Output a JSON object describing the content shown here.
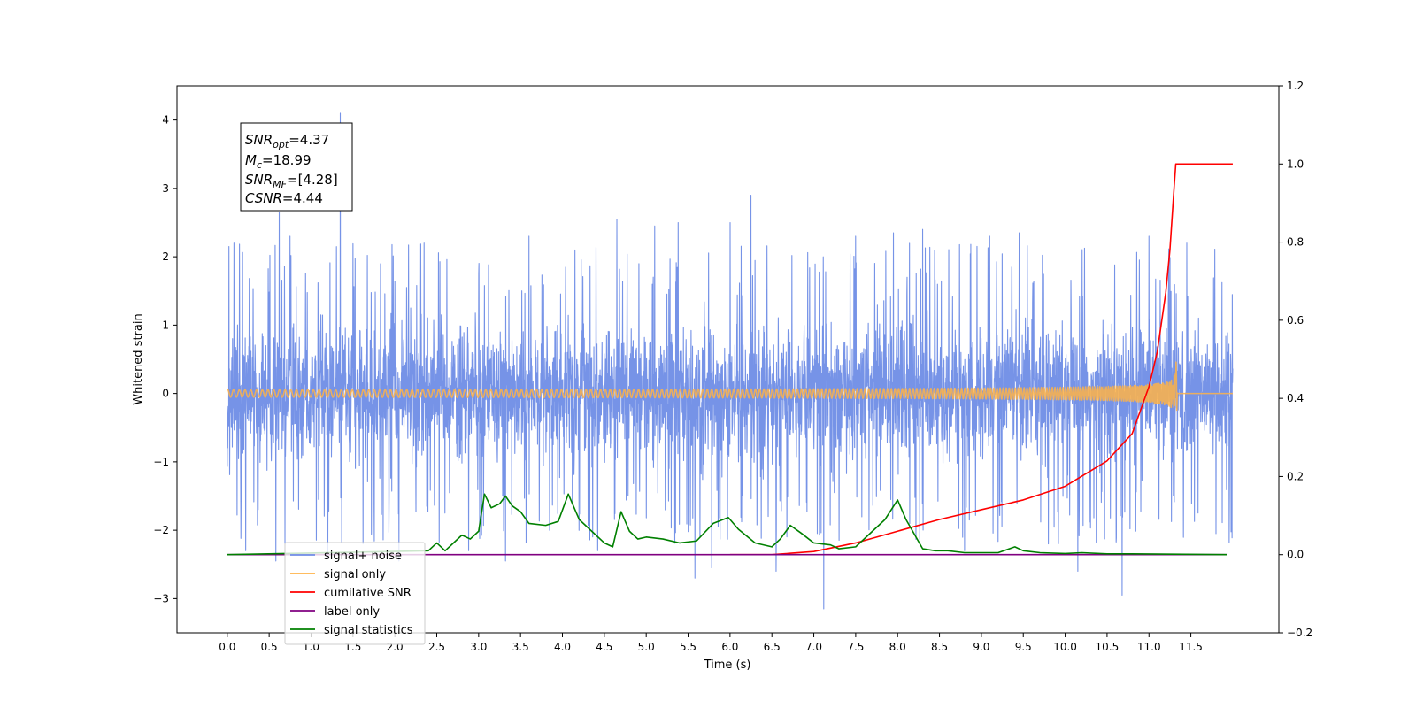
{
  "chart_data": {
    "type": "line",
    "xlabel": "Time (s)",
    "ylabel": "Whitened strain",
    "xlim": [
      -0.6,
      12.55
    ],
    "ylim": [
      -3.5,
      4.5
    ],
    "y2lim": [
      -0.2,
      1.2
    ],
    "grid": false,
    "legend_placement": "lower-left",
    "x_ticks": [
      "0.0",
      "0.5",
      "1.0",
      "1.5",
      "2.0",
      "2.5",
      "3.0",
      "3.5",
      "4.0",
      "4.5",
      "5.0",
      "5.5",
      "6.0",
      "6.5",
      "7.0",
      "7.5",
      "8.0",
      "8.5",
      "9.0",
      "9.5",
      "10.0",
      "10.5",
      "11.0",
      "11.5"
    ],
    "y_ticks": [
      "4",
      "3",
      "2",
      "1",
      "0",
      "−1",
      "−2",
      "−3"
    ],
    "y2_ticks": [
      "1.2",
      "1.0",
      "0.8",
      "0.6",
      "0.4",
      "0.2",
      "0.0",
      "−0.2"
    ],
    "annotation": {
      "snr_opt_base": "SNR",
      "snr_opt_sub": "opt",
      "snr_opt_value": "=4.37",
      "mc_base": "M",
      "mc_sub": "c",
      "mc_value": "=18.99",
      "snr_mf_base": "SNR",
      "snr_mf_sub": "MF",
      "snr_mf_value": "=[4.28]",
      "csnr_base": "CSNR",
      "csnr_value": "=4.44"
    },
    "series": [
      {
        "name": "signal+ noise",
        "color": "#6f8de6",
        "axis": "left",
        "kind": "noise",
        "x_range": [
          0.0,
          12.0
        ],
        "band": [
          -1.6,
          1.4
        ],
        "spikes": [
          [
            0.02,
            2.15
          ],
          [
            0.08,
            2.2
          ],
          [
            0.22,
            -2.3
          ],
          [
            0.58,
            -2.45
          ],
          [
            0.62,
            2.65
          ],
          [
            0.75,
            2.3
          ],
          [
            1.35,
            4.1
          ],
          [
            1.2,
            -2.4
          ],
          [
            1.62,
            -2.2
          ],
          [
            2.05,
            -2.45
          ],
          [
            2.35,
            2.2
          ],
          [
            2.88,
            -2.3
          ],
          [
            3.32,
            -2.45
          ],
          [
            3.6,
            2.3
          ],
          [
            4.15,
            2.1
          ],
          [
            4.42,
            -2.3
          ],
          [
            4.65,
            2.55
          ],
          [
            5.1,
            2.45
          ],
          [
            5.38,
            2.5
          ],
          [
            5.58,
            -2.7
          ],
          [
            5.78,
            -2.55
          ],
          [
            6.0,
            2.5
          ],
          [
            6.25,
            2.9
          ],
          [
            6.55,
            -2.6
          ],
          [
            7.12,
            -3.15
          ],
          [
            7.5,
            2.3
          ],
          [
            7.95,
            2.35
          ],
          [
            8.3,
            2.4
          ],
          [
            8.8,
            -2.3
          ],
          [
            9.1,
            2.3
          ],
          [
            9.45,
            2.35
          ],
          [
            9.8,
            -2.2
          ],
          [
            10.15,
            -2.6
          ],
          [
            10.68,
            -2.95
          ],
          [
            11.0,
            2.3
          ],
          [
            11.45,
            2.2
          ],
          [
            11.8,
            -2.05
          ]
        ]
      },
      {
        "name": "signal only",
        "color": "#ffb347",
        "axis": "left",
        "kind": "chirp",
        "x_range": [
          0.0,
          12.0
        ],
        "merger_time": 11.32,
        "peak_amplitude": 0.72
      },
      {
        "name": "cumilative SNR",
        "color": "#ff0000",
        "axis": "right",
        "x": [
          6.0,
          6.5,
          7.0,
          7.5,
          8.0,
          8.5,
          9.0,
          9.5,
          10.0,
          10.5,
          10.8,
          11.0,
          11.1,
          11.2,
          11.25,
          11.3,
          11.32,
          11.4,
          12.0
        ],
        "y": [
          0.0,
          0.0,
          0.008,
          0.03,
          0.06,
          0.09,
          0.115,
          0.14,
          0.175,
          0.24,
          0.31,
          0.43,
          0.52,
          0.67,
          0.78,
          0.94,
          1.0,
          1.0,
          1.0
        ]
      },
      {
        "name": "label only",
        "color": "#800080",
        "axis": "right",
        "x": [
          0.0,
          11.93
        ],
        "y": [
          0.0,
          0.0
        ]
      },
      {
        "name": "signal statistics",
        "color": "#008000",
        "axis": "right",
        "x": [
          0.0,
          2.4,
          2.5,
          2.6,
          2.8,
          2.9,
          3.0,
          3.07,
          3.15,
          3.25,
          3.32,
          3.4,
          3.5,
          3.6,
          3.8,
          3.95,
          4.07,
          4.2,
          4.35,
          4.5,
          4.6,
          4.7,
          4.8,
          4.9,
          5.0,
          5.2,
          5.4,
          5.6,
          5.8,
          5.98,
          6.1,
          6.3,
          6.5,
          6.6,
          6.72,
          6.85,
          7.0,
          7.2,
          7.3,
          7.5,
          7.7,
          7.85,
          8.0,
          8.1,
          8.3,
          8.45,
          8.6,
          8.8,
          9.2,
          9.4,
          9.5,
          9.7,
          10.0,
          10.2,
          10.5,
          10.8,
          11.93
        ],
        "y": [
          0.0,
          0.01,
          0.03,
          0.01,
          0.05,
          0.04,
          0.06,
          0.155,
          0.12,
          0.13,
          0.15,
          0.125,
          0.11,
          0.08,
          0.075,
          0.085,
          0.155,
          0.09,
          0.06,
          0.03,
          0.02,
          0.11,
          0.06,
          0.04,
          0.045,
          0.04,
          0.03,
          0.035,
          0.08,
          0.095,
          0.065,
          0.03,
          0.02,
          0.04,
          0.075,
          0.055,
          0.03,
          0.025,
          0.015,
          0.02,
          0.06,
          0.09,
          0.14,
          0.09,
          0.015,
          0.01,
          0.01,
          0.005,
          0.005,
          0.02,
          0.01,
          0.005,
          0.003,
          0.005,
          0.002,
          0.002,
          0.0
        ]
      }
    ]
  }
}
